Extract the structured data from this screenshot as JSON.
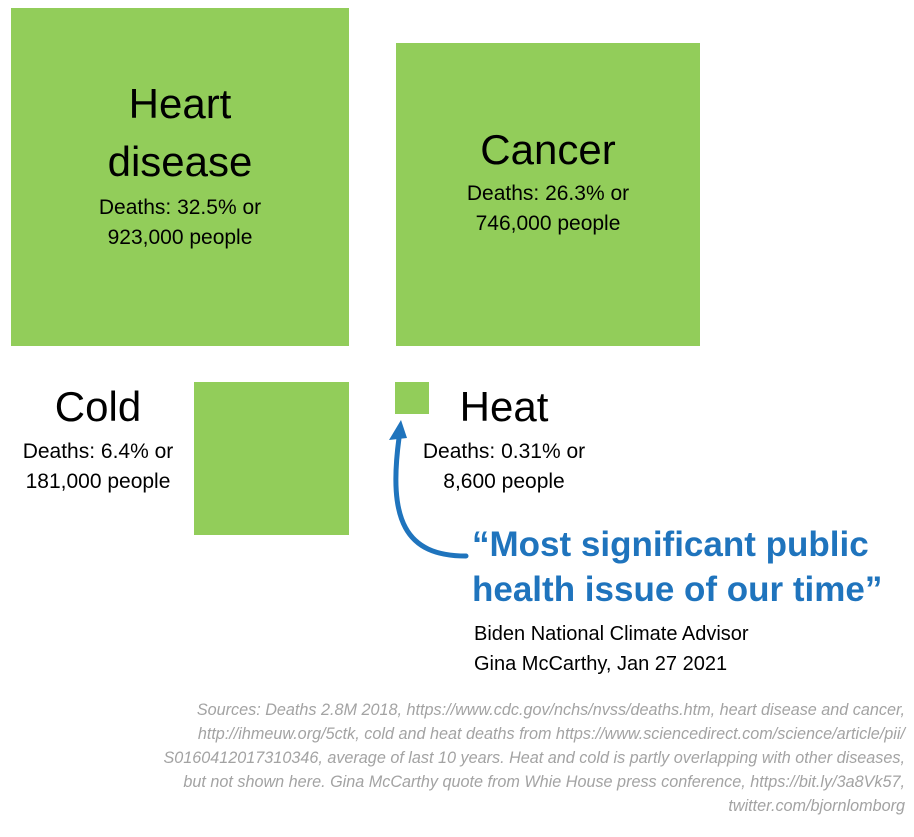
{
  "chart_data": {
    "type": "proportional-area squares",
    "items": [
      {
        "label": "Heart disease",
        "label_lines": [
          "Heart",
          "disease"
        ],
        "percent": 32.5,
        "people": 923000,
        "caption_lines": [
          "Deaths: 32.5% or",
          "923,000 people"
        ]
      },
      {
        "label": "Cancer",
        "percent": 26.3,
        "people": 746000,
        "caption_lines": [
          "Deaths: 26.3% or",
          "746,000 people"
        ]
      },
      {
        "label": "Cold",
        "percent": 6.4,
        "people": 181000,
        "caption_lines": [
          "Deaths: 6.4% or",
          "181,000 people"
        ]
      },
      {
        "label": "Heat",
        "percent": 0.31,
        "people": 8600,
        "caption_lines": [
          "Deaths: 0.31% or",
          "8,600 people"
        ]
      }
    ],
    "colors": {
      "square": "#92cd5a",
      "quote": "#1f74bd",
      "sources": "#a3a3a3"
    }
  },
  "quote": {
    "lines": [
      "“Most significant public",
      "health issue of our time”"
    ],
    "attribution_lines": [
      "Biden National Climate Advisor",
      "Gina McCarthy, Jan 27 2021"
    ]
  },
  "sources_lines": [
    "Sources: Deaths 2.8M 2018, https://www.cdc.gov/nchs/nvss/deaths.htm, heart disease and cancer,",
    "http://ihmeuw.org/5ctk, cold and heat deaths from https://www.sciencedirect.com/science/article/pii/",
    "S0160412017310346, average of last 10 years. Heat and cold is partly overlapping with other diseases,",
    "but not shown here. Gina McCarthy quote from Whie House press conference, https://bit.ly/3a8Vk57,",
    "twitter.com/bjornlomborg"
  ]
}
